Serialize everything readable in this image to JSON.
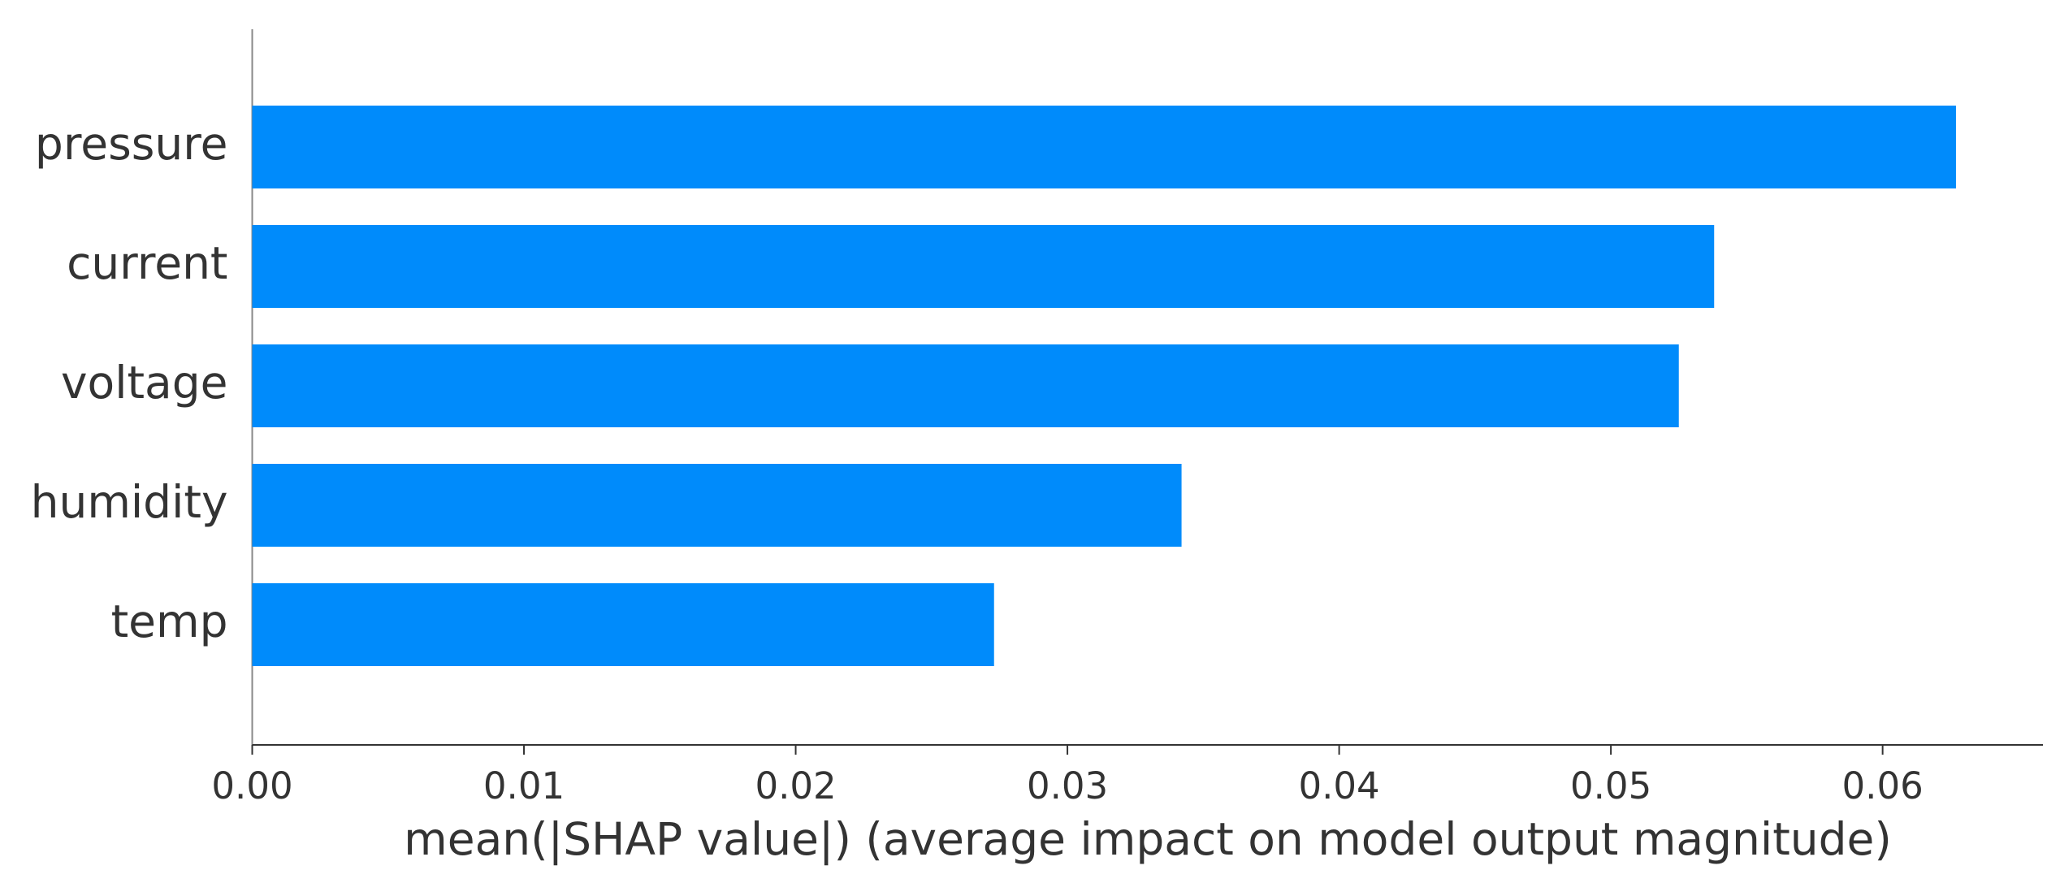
{
  "chart_data": {
    "type": "barh",
    "x_label": "mean(|SHAP value|) (average impact on model output magnitude)",
    "categories": [
      "pressure",
      "current",
      "voltage",
      "humidity",
      "temp"
    ],
    "values": [
      0.0627,
      0.0538,
      0.0525,
      0.0342,
      0.0273
    ],
    "color": "#008bfb",
    "xlim": [
      0,
      0.0659
    ],
    "xticks": [
      {
        "value": 0,
        "label": "0.00"
      },
      0.01,
      0.02,
      0.03,
      0.04,
      0.05,
      0.06
    ]
  }
}
